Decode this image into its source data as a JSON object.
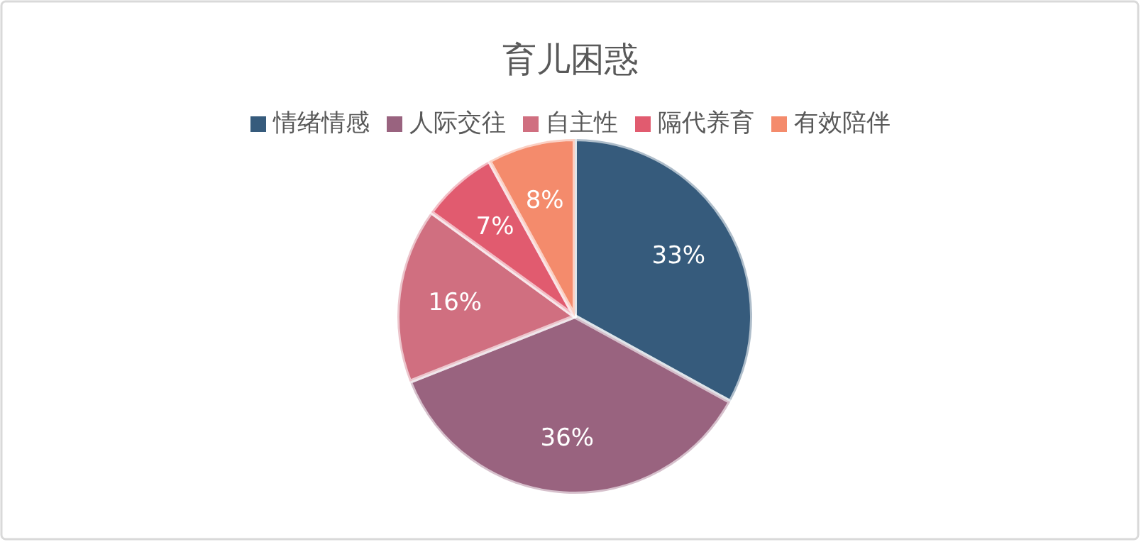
{
  "chart_data": {
    "type": "pie",
    "title": "育儿困惑",
    "categories": [
      "情绪情感",
      "人际交往",
      "自主性",
      "隔代养育",
      "有效陪伴"
    ],
    "values": [
      33,
      36,
      16,
      7,
      8
    ],
    "colors": [
      "#365b7c",
      "#99637f",
      "#d06f80",
      "#e15b6f",
      "#f48b6c"
    ],
    "value_labels": [
      "33%",
      "36%",
      "16%",
      "7%",
      "8%"
    ],
    "legend": "top"
  }
}
